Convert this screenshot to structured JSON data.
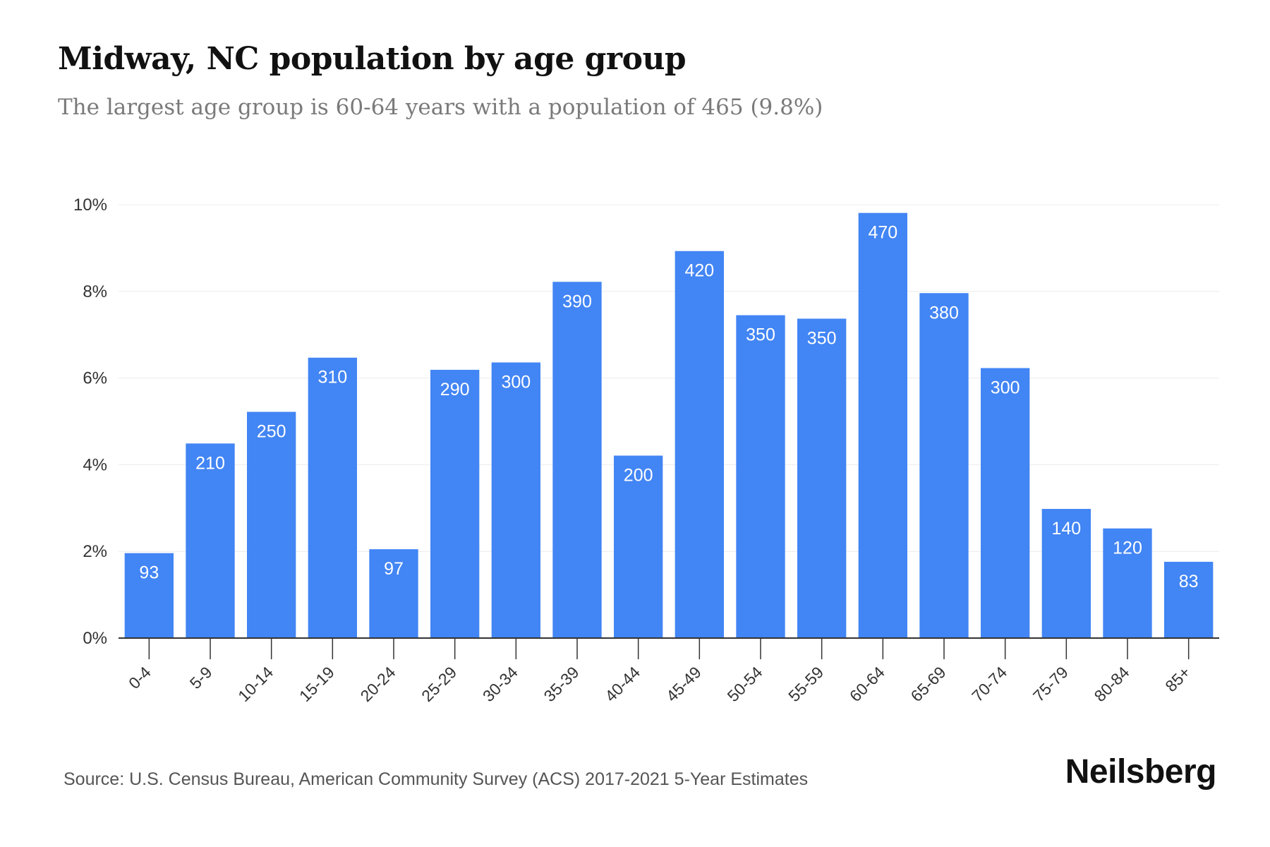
{
  "chart_data": {
    "type": "bar",
    "title": "Midway, NC population by age group",
    "subtitle": "The largest age group is 60-64 years with a population of 465 (9.8%)",
    "categories": [
      "0-4",
      "5-9",
      "10-14",
      "15-19",
      "20-24",
      "25-29",
      "30-34",
      "35-39",
      "40-44",
      "45-49",
      "50-54",
      "55-59",
      "60-64",
      "65-69",
      "70-74",
      "75-79",
      "80-84",
      "85+"
    ],
    "values": [
      1.96,
      4.49,
      5.22,
      6.47,
      2.05,
      6.19,
      6.36,
      8.22,
      4.21,
      8.93,
      7.45,
      7.37,
      9.81,
      7.96,
      6.23,
      2.98,
      2.53,
      1.76
    ],
    "data_labels": [
      "93",
      "210",
      "250",
      "310",
      "97",
      "290",
      "300",
      "390",
      "200",
      "420",
      "350",
      "350",
      "470",
      "380",
      "300",
      "140",
      "120",
      "83"
    ],
    "ylim": [
      0,
      10
    ],
    "yticks": [
      "0%",
      "2%",
      "4%",
      "6%",
      "8%",
      "10%"
    ],
    "ytick_values": [
      0,
      2,
      4,
      6,
      8,
      10
    ],
    "xlabel": "",
    "ylabel": "",
    "grid": true,
    "bar_color": "#4285f4"
  },
  "footer": {
    "source": "Source: U.S. Census Bureau, American Community Survey (ACS) 2017-2021 5-Year Estimates",
    "brand": "Neilsberg"
  }
}
